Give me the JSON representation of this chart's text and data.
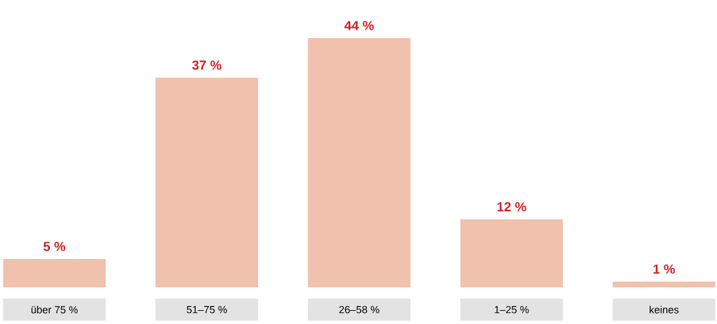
{
  "chart_data": {
    "type": "bar",
    "categories": [
      "über 75 %",
      "51–75 %",
      "26–58 %",
      "1–25 %",
      "keines"
    ],
    "values": [
      5,
      37,
      44,
      12,
      1
    ],
    "color": "#f0c1ad",
    "value_labels": [
      "5 %",
      "37 %",
      "44 %",
      "12 %",
      "1 %"
    ]
  }
}
